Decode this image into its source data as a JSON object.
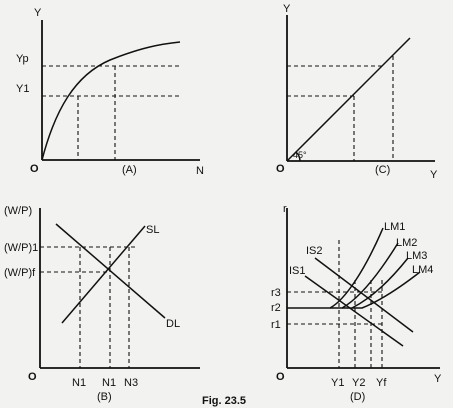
{
  "figure": {
    "caption": "Fig. 23.5",
    "panels": {
      "A": {
        "tag": "(A)",
        "origin": "O",
        "y_axis": "Y",
        "x_axis": "N",
        "y_ticks": [
          "Yp",
          "Y1"
        ]
      },
      "C": {
        "tag": "(C)",
        "origin": "O",
        "y_axis": "Y",
        "x_axis": "Y",
        "angle": "45°"
      },
      "B": {
        "tag": "(B)",
        "origin": "O",
        "y_axis": "(W/P)",
        "y_ticks": [
          "(W/P)1",
          "(W/P)f"
        ],
        "x_ticks": [
          "N1",
          "N1",
          "N3"
        ],
        "curves": [
          "SL",
          "DL"
        ]
      },
      "D": {
        "tag": "(D)",
        "origin": "O",
        "y_axis": "r",
        "x_axis": "Y",
        "y_ticks": [
          "r3",
          "r2",
          "r1"
        ],
        "x_ticks": [
          "Y1",
          "Y2",
          "Yf"
        ],
        "curves": [
          "IS2",
          "IS1",
          "LM1",
          "LM2",
          "LM3",
          "LM4"
        ]
      }
    }
  }
}
